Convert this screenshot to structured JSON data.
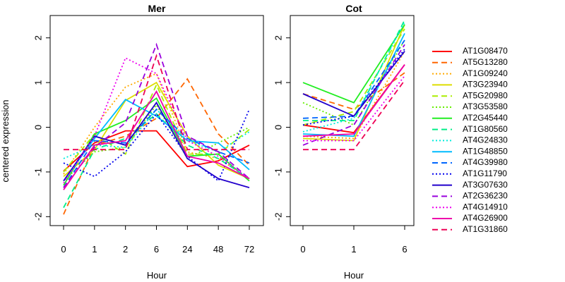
{
  "chart_data": {
    "type": "line",
    "ylabel": "centered expression",
    "xlabel": "Hour",
    "ylim": [
      -2.2,
      2.5
    ],
    "yticks": [
      -2,
      -1,
      0,
      1,
      2
    ],
    "grid": false,
    "legend_position": "right",
    "panels": [
      {
        "title": "Mer",
        "categories": [
          "0",
          "1",
          "2",
          "6",
          "24",
          "48",
          "72"
        ]
      },
      {
        "title": "Cot",
        "categories": [
          "0",
          "1",
          "6"
        ]
      }
    ],
    "series": [
      {
        "name": "AT1G08470",
        "color": "#ff0000",
        "dash": "solid",
        "mer": [
          -0.98,
          -0.35,
          -0.08,
          -0.08,
          -0.88,
          -0.75,
          -0.4
        ],
        "cot": [
          0.05,
          -0.12,
          1.4
        ]
      },
      {
        "name": "AT5G13280",
        "color": "#ff6600",
        "dash": "dashed",
        "mer": [
          -1.95,
          -0.4,
          -0.2,
          0.2,
          1.08,
          -0.15,
          -0.85
        ],
        "cot": [
          0.75,
          0.4,
          1.22
        ]
      },
      {
        "name": "AT1G09240",
        "color": "#ffaa00",
        "dash": "dotted",
        "mer": [
          -1.05,
          0.0,
          0.9,
          1.2,
          -0.55,
          -0.7,
          -1.15
        ],
        "cot": [
          -0.2,
          -0.25,
          1.7
        ]
      },
      {
        "name": "AT3G23940",
        "color": "#dddd00",
        "dash": "solid",
        "mer": [
          -1.1,
          -0.5,
          0.6,
          1.0,
          -0.2,
          -0.85,
          -1.15
        ],
        "cot": [
          -0.25,
          -0.3,
          2.3
        ]
      },
      {
        "name": "AT5G20980",
        "color": "#aaee00",
        "dash": "dashed",
        "mer": [
          -1.0,
          -0.15,
          -0.6,
          0.95,
          -0.6,
          -0.6,
          -0.05
        ],
        "cot": [
          0.05,
          0.35,
          2.2
        ]
      },
      {
        "name": "AT3G53580",
        "color": "#66ee00",
        "dash": "dotted",
        "mer": [
          -1.2,
          -0.55,
          -0.45,
          0.5,
          -0.7,
          -0.35,
          0.0
        ],
        "cot": [
          0.55,
          0.05,
          1.95
        ]
      },
      {
        "name": "AT2G45440",
        "color": "#22ee22",
        "dash": "solid",
        "mer": [
          -1.3,
          -0.15,
          0.15,
          0.65,
          -0.65,
          -0.6,
          -1.2
        ],
        "cot": [
          1.0,
          0.55,
          2.3
        ]
      },
      {
        "name": "AT1G80560",
        "color": "#00ee88",
        "dash": "dashed",
        "mer": [
          -1.8,
          -0.5,
          -0.25,
          0.3,
          -0.4,
          -0.7,
          -1.15
        ],
        "cot": [
          0.15,
          0.15,
          2.4
        ]
      },
      {
        "name": "AT4G24830",
        "color": "#00eedd",
        "dash": "dotted",
        "mer": [
          -0.7,
          -0.4,
          -0.45,
          0.4,
          -0.3,
          -0.55,
          -0.1
        ],
        "cot": [
          -0.1,
          0.2,
          2.35
        ]
      },
      {
        "name": "AT1G48850",
        "color": "#00bbff",
        "dash": "solid",
        "mer": [
          -1.2,
          -0.25,
          0.62,
          0.25,
          -0.3,
          -0.35,
          -0.95
        ],
        "cot": [
          -0.15,
          -0.2,
          2.1
        ]
      },
      {
        "name": "AT4G39980",
        "color": "#0066ff",
        "dash": "dashed",
        "mer": [
          -1.35,
          -0.3,
          -0.35,
          0.4,
          -0.25,
          -0.55,
          -0.8
        ],
        "cot": [
          0.2,
          0.25,
          1.95
        ]
      },
      {
        "name": "AT1G11790",
        "color": "#0000ee",
        "dash": "dotted",
        "mer": [
          -0.8,
          -1.1,
          -0.55,
          0.3,
          -0.65,
          -1.2,
          0.4
        ],
        "cot": [
          0.05,
          0.25,
          1.75
        ]
      },
      {
        "name": "AT3G07630",
        "color": "#2200cc",
        "dash": "solid",
        "mer": [
          -1.2,
          -0.2,
          -0.4,
          0.55,
          -0.7,
          -1.15,
          -1.35
        ],
        "cot": [
          0.75,
          0.25,
          1.7
        ]
      },
      {
        "name": "AT2G36230",
        "color": "#9900dd",
        "dash": "dashed",
        "mer": [
          -1.35,
          -0.45,
          0.1,
          1.85,
          -0.2,
          -0.55,
          -1.15
        ],
        "cot": [
          -0.4,
          0.05,
          1.85
        ]
      },
      {
        "name": "AT4G14910",
        "color": "#ee00ee",
        "dash": "dotted",
        "mer": [
          -1.25,
          -0.2,
          1.55,
          1.2,
          -0.3,
          -0.65,
          -1.15
        ],
        "cot": [
          -0.3,
          -0.3,
          1.15
        ]
      },
      {
        "name": "AT4G26900",
        "color": "#ee00aa",
        "dash": "solid",
        "mer": [
          -1.4,
          -0.4,
          -0.3,
          0.8,
          -0.65,
          -0.8,
          -1.15
        ],
        "cot": [
          -0.2,
          -0.15,
          1.4
        ]
      },
      {
        "name": "AT1G31860",
        "color": "#ee0055",
        "dash": "dashed",
        "mer": [
          -0.5,
          -0.5,
          -0.5,
          1.6,
          -0.5,
          -0.5,
          -0.5
        ],
        "cot": [
          -0.5,
          -0.5,
          1.05
        ]
      }
    ]
  }
}
